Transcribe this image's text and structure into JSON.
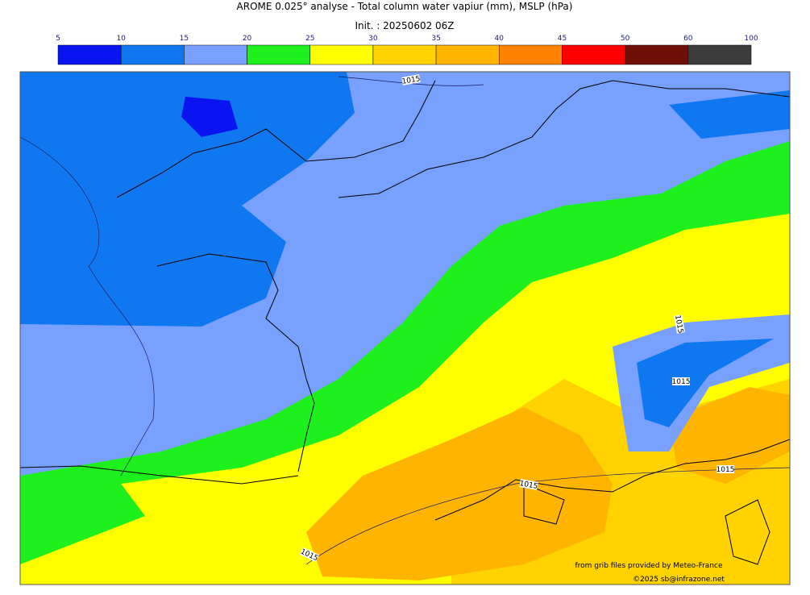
{
  "header": {
    "title": "AROME 0.025° analyse - Total column water vapiur (mm), MSLP (hPa)",
    "subtitle": "Init. : 20250602 06Z"
  },
  "colorbar": {
    "ticks": [
      5,
      10,
      15,
      20,
      25,
      30,
      35,
      40,
      45,
      50,
      60,
      100
    ],
    "colors": [
      "#0a14f0",
      "#0f78f0",
      "#78a0ff",
      "#1ef01e",
      "#ffff00",
      "#ffd200",
      "#ffb400",
      "#ff8200",
      "#ff0000",
      "#6e0f0a",
      "#3c3c3c"
    ]
  },
  "isobars": [
    "1015",
    "1015",
    "1015",
    "1015",
    "1015",
    "1015"
  ],
  "credits": [
    "from grib files provided by Meteo-France",
    "©2025 sb@infrazone.net"
  ]
}
